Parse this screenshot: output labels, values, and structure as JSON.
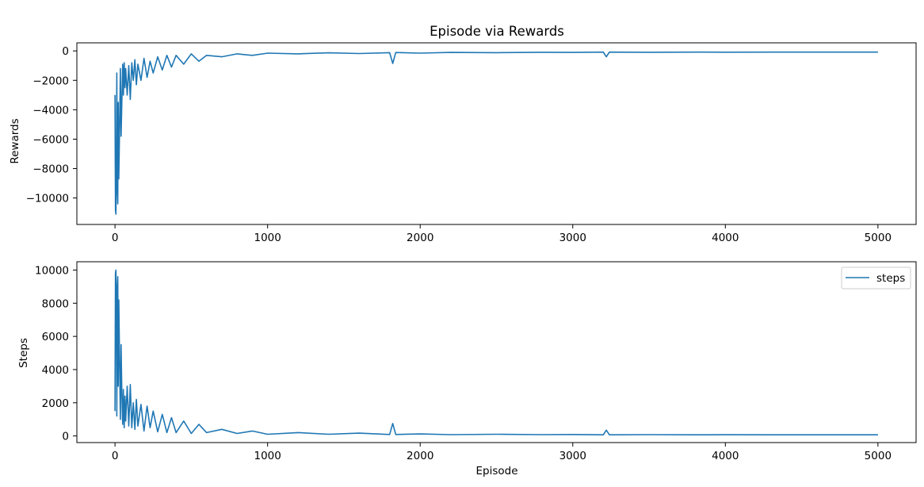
{
  "chart_data": [
    {
      "type": "line",
      "title": "Episode via Rewards",
      "xlabel": "",
      "ylabel": "Rewards",
      "xlim": [
        -250,
        5250
      ],
      "ylim": [
        -11800,
        550
      ],
      "xticks": [
        0,
        1000,
        2000,
        3000,
        4000,
        5000
      ],
      "yticks": [
        0,
        -2000,
        -4000,
        -6000,
        -8000,
        -10000
      ],
      "xtick_labels": [
        "0",
        "1000",
        "2000",
        "3000",
        "4000",
        "5000"
      ],
      "ytick_labels": [
        "0",
        "−2000",
        "−4000",
        "−6000",
        "−8000",
        "−10000"
      ],
      "legend": null,
      "grid": false,
      "series": [
        {
          "color": "#1f77b4",
          "x": [
            0,
            3,
            6,
            9,
            12,
            15,
            18,
            21,
            25,
            30,
            35,
            40,
            45,
            50,
            55,
            60,
            65,
            70,
            80,
            90,
            100,
            110,
            120,
            130,
            140,
            150,
            170,
            190,
            210,
            230,
            250,
            280,
            310,
            340,
            370,
            400,
            450,
            500,
            550,
            600,
            700,
            800,
            900,
            1000,
            1200,
            1400,
            1600,
            1800,
            1820,
            1840,
            2000,
            2200,
            2500,
            2800,
            3000,
            3200,
            3220,
            3240,
            3500,
            3800,
            4000,
            4300,
            4600,
            4800,
            5000
          ],
          "y": [
            -3000,
            -10800,
            -11100,
            -7000,
            -1500,
            -9500,
            -10400,
            -3500,
            -8700,
            -5200,
            -1200,
            -5800,
            -3400,
            -900,
            -3000,
            -800,
            -2500,
            -1200,
            -3000,
            -1000,
            -3300,
            -800,
            -2000,
            -600,
            -2300,
            -900,
            -2000,
            -500,
            -1800,
            -700,
            -1500,
            -400,
            -1300,
            -300,
            -1100,
            -300,
            -900,
            -200,
            -700,
            -300,
            -400,
            -200,
            -300,
            -150,
            -200,
            -130,
            -180,
            -120,
            -850,
            -110,
            -150,
            -100,
            -120,
            -90,
            -100,
            -80,
            -400,
            -80,
            -90,
            -80,
            -85,
            -80,
            -80,
            -80,
            -80
          ]
        }
      ]
    },
    {
      "type": "line",
      "title": "",
      "xlabel": "Episode",
      "ylabel": "Steps",
      "xlim": [
        -250,
        5250
      ],
      "ylim": [
        -400,
        10500
      ],
      "xticks": [
        0,
        1000,
        2000,
        3000,
        4000,
        5000
      ],
      "yticks": [
        0,
        2000,
        4000,
        6000,
        8000,
        10000
      ],
      "xtick_labels": [
        "0",
        "1000",
        "2000",
        "3000",
        "4000",
        "5000"
      ],
      "ytick_labels": [
        "0",
        "2000",
        "4000",
        "6000",
        "8000",
        "10000"
      ],
      "legend": "top-right",
      "grid": false,
      "series": [
        {
          "name": "steps",
          "color": "#1f77b4",
          "x": [
            0,
            3,
            6,
            9,
            12,
            15,
            18,
            21,
            25,
            30,
            35,
            40,
            45,
            50,
            55,
            60,
            65,
            70,
            80,
            90,
            100,
            110,
            120,
            130,
            140,
            150,
            170,
            190,
            210,
            230,
            250,
            280,
            310,
            340,
            370,
            400,
            450,
            500,
            550,
            600,
            700,
            800,
            900,
            1000,
            1200,
            1400,
            1600,
            1800,
            1820,
            1840,
            2000,
            2200,
            2500,
            2800,
            3000,
            3200,
            3220,
            3240,
            3500,
            3800,
            4000,
            4300,
            4600,
            4800,
            5000
          ],
          "y": [
            1500,
            9800,
            10000,
            6000,
            1200,
            9000,
            9600,
            3000,
            8200,
            4500,
            1000,
            5500,
            2500,
            700,
            2800,
            500,
            2400,
            900,
            3000,
            600,
            3100,
            500,
            2000,
            400,
            2200,
            600,
            1900,
            300,
            1800,
            500,
            1500,
            250,
            1300,
            200,
            1100,
            200,
            900,
            150,
            700,
            200,
            400,
            150,
            300,
            100,
            200,
            100,
            170,
            90,
            750,
            90,
            120,
            80,
            100,
            80,
            90,
            70,
            350,
            70,
            80,
            70,
            75,
            70,
            70,
            70,
            70
          ]
        }
      ]
    }
  ]
}
